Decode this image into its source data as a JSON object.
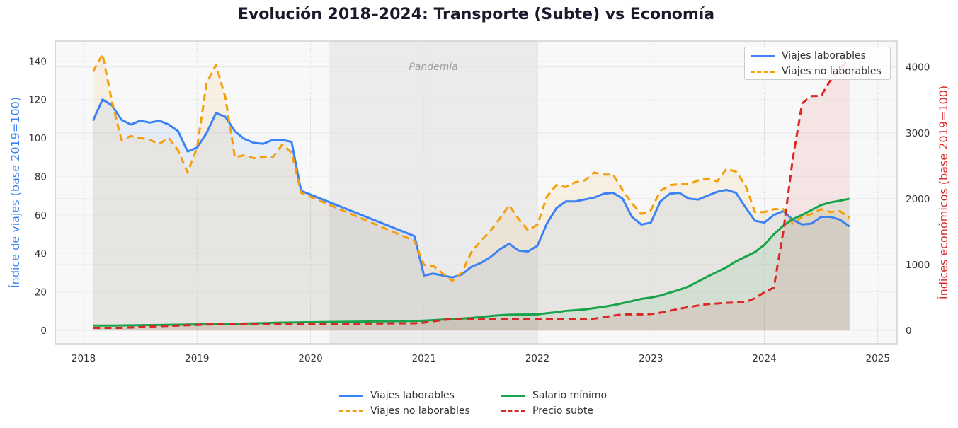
{
  "chart_data": {
    "type": "line",
    "title": "Evolución 2018–2024: Transporte (Subte) vs Economía",
    "ylabel_left": "Índice de viajes (base 2019=100)",
    "ylabel_right": "Índices económicos (base 2019=100)",
    "xlabel": "",
    "xlim": [
      2017.75,
      2025.17
    ],
    "ylim_left": [
      -7,
      150.4
    ],
    "ylim_right": [
      -202,
      4394
    ],
    "xticks": [
      "2018",
      "2019",
      "2020",
      "2021",
      "2022",
      "2023",
      "2024",
      "2025"
    ],
    "yticks_left": [
      "0",
      "20",
      "40",
      "60",
      "80",
      "100",
      "120",
      "140"
    ],
    "yticks_right": [
      "0",
      "1000",
      "2000",
      "3000",
      "4000"
    ],
    "grid": true,
    "annotation": {
      "label": "Pandemia",
      "start": "2020-03",
      "end": "2022-01",
      "color": "#9e9e9e"
    },
    "legend_top": {
      "placement": "upper-right",
      "entries": [
        "Viajes laborables",
        "Viajes no laborables"
      ]
    },
    "legend_bottom": {
      "placement": "bottom-center",
      "entries": [
        "Viajes laborables",
        "Viajes no laborables",
        "Salario mínimo",
        "Precio subte"
      ]
    },
    "x": [
      "2018-02",
      "2018-03",
      "2018-04",
      "2018-05",
      "2018-06",
      "2018-07",
      "2018-08",
      "2018-09",
      "2018-10",
      "2018-11",
      "2018-12",
      "2019-01",
      "2019-02",
      "2019-03",
      "2019-04",
      "2019-05",
      "2019-06",
      "2019-07",
      "2019-08",
      "2019-09",
      "2019-10",
      "2019-11",
      "2019-12",
      "2020-12",
      "2021-01",
      "2021-02",
      "2021-03",
      "2021-04",
      "2021-05",
      "2021-06",
      "2021-07",
      "2021-08",
      "2021-09",
      "2021-10",
      "2021-11",
      "2021-12",
      "2022-01",
      "2022-02",
      "2022-03",
      "2022-04",
      "2022-05",
      "2022-06",
      "2022-07",
      "2022-08",
      "2022-09",
      "2022-10",
      "2022-11",
      "2022-12",
      "2023-01",
      "2023-02",
      "2023-03",
      "2023-04",
      "2023-05",
      "2023-06",
      "2023-07",
      "2023-08",
      "2023-09",
      "2023-10",
      "2023-11",
      "2023-12",
      "2024-01",
      "2024-02",
      "2024-03",
      "2024-04",
      "2024-05",
      "2024-06",
      "2024-07",
      "2024-08",
      "2024-09",
      "2024-10"
    ],
    "series": [
      {
        "name": "Viajes laborables",
        "axis": "left",
        "color": "#3b82f6",
        "dash": false,
        "values": [
          109,
          120,
          117,
          109.5,
          107,
          109,
          108,
          109,
          107,
          103.5,
          93,
          95,
          102.5,
          113,
          111,
          103.5,
          99.5,
          97.5,
          97,
          99,
          99,
          98,
          72.5,
          49,
          28.5,
          29.5,
          28.5,
          27.5,
          29,
          33,
          35,
          38,
          42,
          45,
          41.5,
          41,
          44,
          55.5,
          63.5,
          67,
          67,
          68,
          69,
          71,
          71.5,
          68.5,
          59,
          55,
          56,
          67,
          71,
          71.5,
          68.5,
          68,
          70,
          72,
          73,
          71.5,
          64,
          57,
          56,
          60,
          62,
          57.5,
          55,
          55.5,
          59,
          59,
          57.5,
          54
        ]
      },
      {
        "name": "Viajes no laborables",
        "axis": "left",
        "color": "#f59e0b",
        "dash": true,
        "values": [
          134.5,
          143.5,
          119,
          99,
          101,
          100,
          99,
          97,
          100,
          93.5,
          82,
          95,
          128.5,
          138,
          121,
          90,
          91,
          89.5,
          90,
          90,
          96.5,
          92.5,
          71.5,
          46.5,
          34,
          33.5,
          29.5,
          25.7,
          30,
          40.5,
          46.5,
          51.5,
          58,
          65,
          58,
          52,
          55,
          69.5,
          75.5,
          74.5,
          77,
          78,
          82,
          81,
          81,
          73,
          66,
          60.5,
          62.5,
          72.5,
          75.5,
          76,
          76,
          78,
          79,
          77.5,
          84,
          82.5,
          75.5,
          61.5,
          61.5,
          63,
          63,
          55.5,
          59,
          60.5,
          63,
          61.5,
          62,
          58.5
        ]
      },
      {
        "name": "Salario mínimo",
        "axis": "right",
        "color": "#16a34a",
        "dash": false,
        "values": [
          75,
          75,
          75,
          76,
          78,
          80,
          82,
          84,
          86,
          88,
          90,
          92,
          95,
          98,
          100,
          102,
          105,
          108,
          112,
          116,
          120,
          122,
          124,
          145,
          150,
          158,
          166,
          175,
          182,
          190,
          205,
          220,
          232,
          240,
          242,
          242,
          245,
          262,
          277,
          298,
          308,
          320,
          340,
          360,
          383,
          415,
          447,
          480,
          500,
          530,
          575,
          617,
          670,
          745,
          820,
          890,
          960,
          1050,
          1120,
          1190,
          1300,
          1460,
          1590,
          1690,
          1755,
          1830,
          1905,
          1945,
          1970,
          2000
        ]
      },
      {
        "name": "Precio subte",
        "axis": "right",
        "color": "#dc2626",
        "dash": true,
        "values": [
          40,
          40,
          40,
          40,
          45,
          50,
          60,
          65,
          70,
          75,
          80,
          85,
          90,
          95,
          100,
          100,
          100,
          100,
          100,
          100,
          100,
          100,
          100,
          110,
          120,
          140,
          160,
          170,
          170,
          170,
          170,
          170,
          170,
          170,
          170,
          170,
          170,
          170,
          170,
          170,
          170,
          170,
          180,
          200,
          225,
          245,
          245,
          245,
          250,
          270,
          300,
          330,
          355,
          380,
          400,
          410,
          420,
          425,
          430,
          490,
          580,
          650,
          1500,
          2600,
          3450,
          3560,
          3560,
          3800,
          3980,
          4110
        ]
      }
    ]
  }
}
